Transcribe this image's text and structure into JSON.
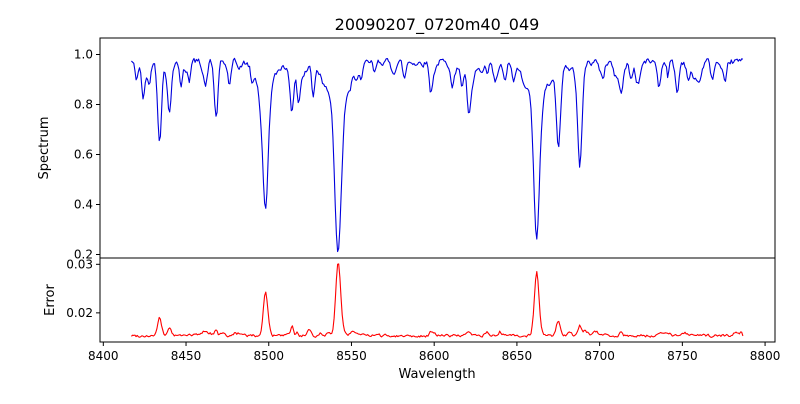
{
  "figure": {
    "title": "20090207_0720m40_049",
    "background": "#ffffff"
  },
  "chart_data": {
    "type": "line",
    "title": "20090207_0720m40_049",
    "xlabel": "Wavelength",
    "xlim": [
      8398,
      8806
    ],
    "xticks": [
      8400,
      8450,
      8500,
      8550,
      8600,
      8650,
      8700,
      8750,
      8800
    ],
    "grid": false,
    "legend": "none",
    "panels": [
      {
        "name": "spectrum",
        "ylabel": "Spectrum",
        "color": "#0000dd",
        "ylim": [
          0.186,
          1.066
        ],
        "yticks": [
          0.2,
          0.4,
          0.6,
          0.8,
          1.0
        ],
        "ytick_labels": [
          "0.2",
          "0.4",
          "0.6",
          "0.8",
          "1.0"
        ],
        "series": {
          "x_start": 8417,
          "x_end": 8787,
          "step": 0.7,
          "baseline": 0.972,
          "noise": 0.022,
          "seed": 42,
          "micro": {
            "count": 90,
            "amp": -0.05,
            "width": 0.9,
            "seed": 7
          },
          "features": [
            {
              "c": 8420,
              "a": -0.07,
              "w": 0.9
            },
            {
              "c": 8424,
              "a": -0.13,
              "w": 1.0
            },
            {
              "c": 8428,
              "a": -0.08,
              "w": 0.8
            },
            {
              "c": 8434,
              "a": -0.31,
              "w": 1.2
            },
            {
              "c": 8440,
              "a": -0.2,
              "w": 1.1
            },
            {
              "c": 8447,
              "a": -0.09,
              "w": 0.9
            },
            {
              "c": 8452,
              "a": -0.07,
              "w": 0.8
            },
            {
              "c": 8462,
              "a": -0.09,
              "w": 0.9
            },
            {
              "c": 8468,
              "a": -0.15,
              "w": 1.1
            },
            {
              "c": 8476,
              "a": -0.07,
              "w": 0.8
            },
            {
              "c": 8490,
              "a": -0.06,
              "w": 0.8
            },
            {
              "c": 8498,
              "a": -0.47,
              "w": 1.6
            },
            {
              "c": 8498,
              "a": -0.12,
              "w": 5.0
            },
            {
              "c": 8514,
              "a": -0.17,
              "w": 1.1
            },
            {
              "c": 8518,
              "a": -0.11,
              "w": 1.0
            },
            {
              "c": 8527,
              "a": -0.07,
              "w": 0.9
            },
            {
              "c": 8542,
              "a": -0.58,
              "w": 1.9
            },
            {
              "c": 8542,
              "a": -0.165,
              "w": 7.0
            },
            {
              "c": 8556,
              "a": -0.06,
              "w": 0.8
            },
            {
              "c": 8564,
              "a": -0.05,
              "w": 0.8
            },
            {
              "c": 8582,
              "a": -0.07,
              "w": 0.9
            },
            {
              "c": 8598,
              "a": -0.11,
              "w": 1.0
            },
            {
              "c": 8611,
              "a": -0.09,
              "w": 0.9
            },
            {
              "c": 8617,
              "a": -0.09,
              "w": 0.9
            },
            {
              "c": 8621,
              "a": -0.11,
              "w": 1.0
            },
            {
              "c": 8632,
              "a": -0.06,
              "w": 0.8
            },
            {
              "c": 8648,
              "a": -0.08,
              "w": 0.9
            },
            {
              "c": 8662,
              "a": -0.55,
              "w": 1.7
            },
            {
              "c": 8662,
              "a": -0.15,
              "w": 6.0
            },
            {
              "c": 8675,
              "a": -0.3,
              "w": 1.3
            },
            {
              "c": 8688,
              "a": -0.33,
              "w": 1.4
            },
            {
              "c": 8702,
              "a": -0.07,
              "w": 0.9
            },
            {
              "c": 8713,
              "a": -0.1,
              "w": 1.0
            },
            {
              "c": 8719,
              "a": -0.07,
              "w": 0.9
            },
            {
              "c": 8736,
              "a": -0.1,
              "w": 1.0
            },
            {
              "c": 8747,
              "a": -0.08,
              "w": 0.9
            },
            {
              "c": 8757,
              "a": -0.07,
              "w": 0.9
            },
            {
              "c": 8768,
              "a": -0.07,
              "w": 0.9
            },
            {
              "c": 8776,
              "a": -0.08,
              "w": 0.9
            }
          ]
        }
      },
      {
        "name": "error",
        "ylabel": "Error",
        "color": "#ff0000",
        "ylim": [
          0.014,
          0.0313
        ],
        "yticks": [
          0.02,
          0.03
        ],
        "ytick_labels": [
          "0.02",
          "0.03"
        ],
        "series": {
          "x_start": 8417,
          "x_end": 8787,
          "step": 0.7,
          "baseline": 0.0153,
          "noise": 0.0005,
          "seed": 99,
          "micro": {
            "count": 55,
            "amp": 0.0009,
            "width": 0.8,
            "seed": 13
          },
          "features": [
            {
              "c": 8434,
              "a": 0.0035,
              "w": 1.2
            },
            {
              "c": 8440,
              "a": 0.0018,
              "w": 1.0
            },
            {
              "c": 8468,
              "a": 0.0012,
              "w": 1.0
            },
            {
              "c": 8498,
              "a": 0.009,
              "w": 1.3
            },
            {
              "c": 8514,
              "a": 0.0012,
              "w": 1.0
            },
            {
              "c": 8542,
              "a": 0.015,
              "w": 1.5
            },
            {
              "c": 8598,
              "a": 0.0008,
              "w": 0.9
            },
            {
              "c": 8621,
              "a": 0.0008,
              "w": 0.9
            },
            {
              "c": 8662,
              "a": 0.013,
              "w": 1.4
            },
            {
              "c": 8675,
              "a": 0.0022,
              "w": 1.1
            },
            {
              "c": 8688,
              "a": 0.0022,
              "w": 1.1
            },
            {
              "c": 8713,
              "a": 0.0008,
              "w": 0.9
            },
            {
              "c": 8736,
              "a": 0.0008,
              "w": 0.9
            }
          ]
        }
      }
    ]
  }
}
